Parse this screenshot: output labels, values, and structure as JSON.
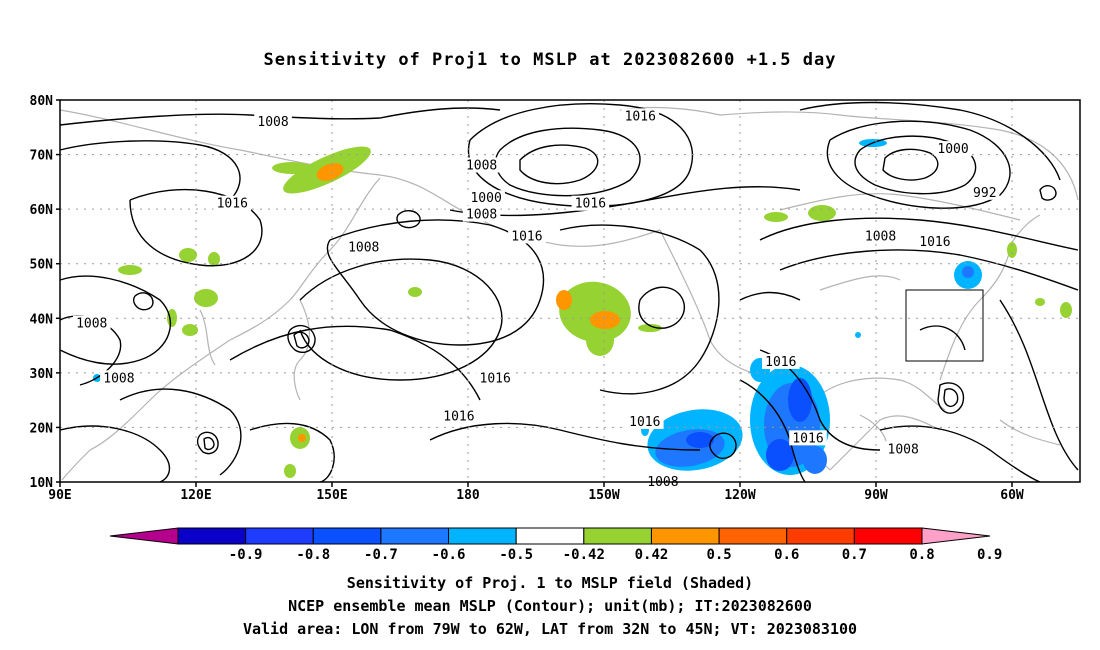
{
  "title": "Sensitivity of Proj1 to MSLP at 2023082600 +1.5 day",
  "map": {
    "lat_ticks": [
      "80N",
      "70N",
      "60N",
      "50N",
      "40N",
      "30N",
      "20N",
      "10N"
    ],
    "lon_ticks": [
      "90E",
      "120E",
      "150E",
      "180",
      "150W",
      "120W",
      "90W",
      "60W"
    ],
    "contour_labels": [
      {
        "text": "1008",
        "lon": 137,
        "lat": 76
      },
      {
        "text": "1016",
        "lon": -142,
        "lat": 77
      },
      {
        "text": "1008",
        "lon": -177,
        "lat": 68
      },
      {
        "text": "1000",
        "lon": -73,
        "lat": 71
      },
      {
        "text": "992",
        "lon": -66,
        "lat": 63
      },
      {
        "text": "1016",
        "lon": 128,
        "lat": 61
      },
      {
        "text": "1000",
        "lon": -176,
        "lat": 62
      },
      {
        "text": "1008",
        "lon": -177,
        "lat": 59
      },
      {
        "text": "1016",
        "lon": -153,
        "lat": 61
      },
      {
        "text": "1016",
        "lon": -167,
        "lat": 55
      },
      {
        "text": "1008",
        "lon": -89,
        "lat": 55
      },
      {
        "text": "1016",
        "lon": -77,
        "lat": 54
      },
      {
        "text": "1008",
        "lon": 157,
        "lat": 53
      },
      {
        "text": "1008",
        "lon": 97,
        "lat": 39
      },
      {
        "text": "1008",
        "lon": 103,
        "lat": 29
      },
      {
        "text": "1016",
        "lon": -174,
        "lat": 29
      },
      {
        "text": "1016",
        "lon": -111,
        "lat": 32
      },
      {
        "text": "1016",
        "lon": 178,
        "lat": 22
      },
      {
        "text": "1016",
        "lon": -141,
        "lat": 21
      },
      {
        "text": "1016",
        "lon": -105,
        "lat": 18
      },
      {
        "text": "1008",
        "lon": -84,
        "lat": 16
      },
      {
        "text": "1008",
        "lon": -137,
        "lat": 10
      }
    ],
    "colors": {
      "contour": "#000000",
      "coast": "#b4b4b4",
      "grid": "#9a9a9a"
    }
  },
  "colorbar": {
    "labels": [
      "-0.9",
      "-0.8",
      "-0.7",
      "-0.6",
      "-0.5",
      "-0.42",
      "0.42",
      "0.5",
      "0.6",
      "0.7",
      "0.8",
      "0.9"
    ],
    "colors": [
      "#b4008c",
      "#0a00c8",
      "#1e3cff",
      "#0a50ff",
      "#1e78ff",
      "#00b4ff",
      "#ffffff",
      "#96d232",
      "#ff9600",
      "#ff6400",
      "#ff3c00",
      "#ff0000",
      "#ffa0c8"
    ]
  },
  "captions": {
    "line1": "Sensitivity of Proj. 1 to MSLP field (Shaded)",
    "line2": "NCEP ensemble mean MSLP (Contour); unit(mb); IT:2023082600",
    "line3": "Valid area: LON from 79W to 62W, LAT from 32N to 45N; VT: 2023083100"
  }
}
